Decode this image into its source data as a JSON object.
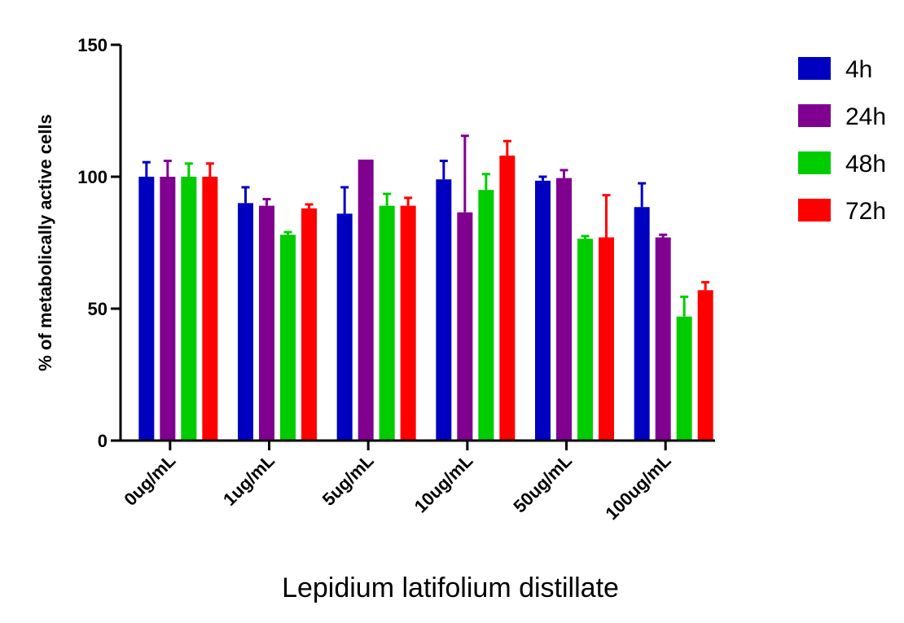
{
  "chart_data": {
    "type": "bar",
    "xlabel": "Lepidium latifolium distillate",
    "ylabel": "% of metabolically active cells",
    "ylim": [
      0,
      150
    ],
    "yticks": [
      "0",
      "50",
      "100",
      "150"
    ],
    "categories": [
      "0ug/mL",
      "1ug/mL",
      "5ug/mL",
      "10ug/mL",
      "50ug/mL",
      "100ug/mL"
    ],
    "legend_position": "top-right",
    "series": [
      {
        "name": "4h",
        "color": "#0000c0",
        "values": [
          100,
          90,
          86,
          99,
          98.5,
          88.5
        ],
        "errors": [
          5.5,
          6,
          10,
          7,
          1.5,
          9
        ]
      },
      {
        "name": "24h",
        "color": "#800090",
        "values": [
          100,
          89,
          106.5,
          86.5,
          99.5,
          77
        ],
        "errors": [
          6,
          2.5,
          0,
          29,
          3,
          1
        ]
      },
      {
        "name": "48h",
        "color": "#00cc00",
        "values": [
          100,
          78,
          89,
          95,
          76.5,
          47
        ],
        "errors": [
          5,
          1,
          4.5,
          6,
          1,
          7.5
        ]
      },
      {
        "name": "72h",
        "color": "#ff0000",
        "values": [
          100,
          88,
          89,
          108,
          77,
          57
        ],
        "errors": [
          5,
          1.5,
          3,
          5.5,
          16,
          3
        ]
      }
    ]
  }
}
